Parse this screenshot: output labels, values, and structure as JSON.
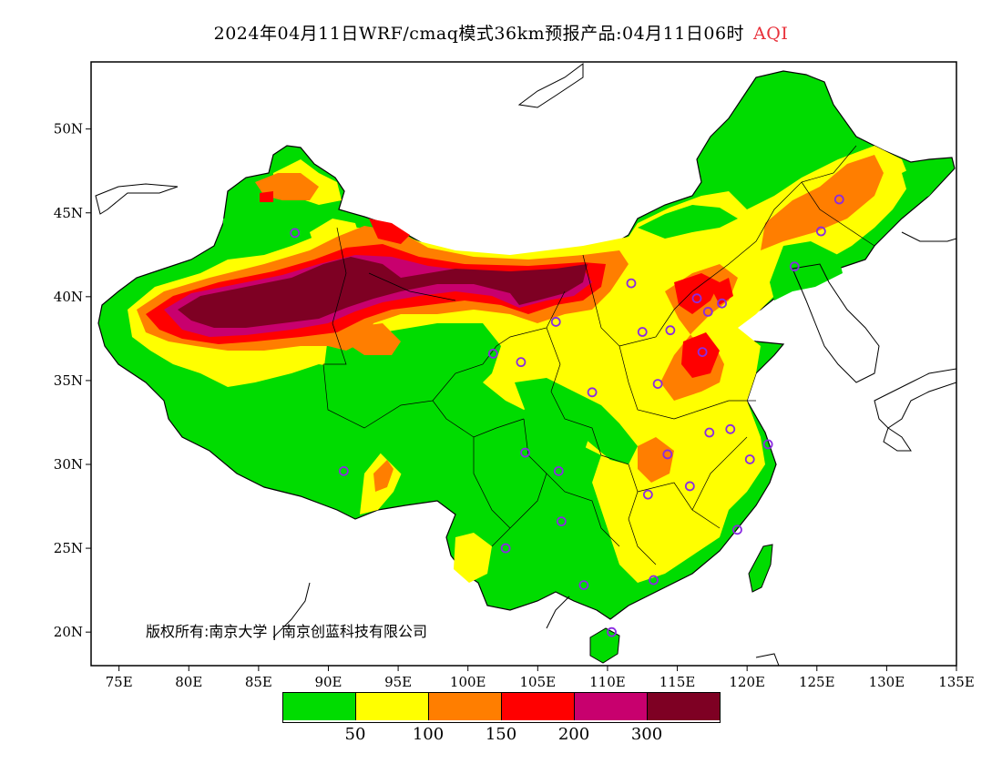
{
  "title": {
    "main": "2024年04月11日WRF/cmaq模式36km预报产品:04月11日06时",
    "variable": "AQI"
  },
  "copyright": "版权所有:南京大学 | 南京创蓝科技有限公司",
  "axes": {
    "x_ticks": [
      "75E",
      "80E",
      "85E",
      "90E",
      "95E",
      "100E",
      "105E",
      "110E",
      "115E",
      "120E",
      "125E",
      "130E",
      "135E"
    ],
    "x_values": [
      75,
      80,
      85,
      90,
      95,
      100,
      105,
      110,
      115,
      120,
      125,
      130,
      135
    ],
    "y_ticks": [
      "20N",
      "25N",
      "30N",
      "35N",
      "40N",
      "45N",
      "50N"
    ],
    "y_values": [
      20,
      25,
      30,
      35,
      40,
      45,
      50
    ],
    "lon_range": [
      73,
      135
    ],
    "lat_range": [
      18,
      54
    ]
  },
  "legend": {
    "colors": [
      "#00dc00",
      "#ffff00",
      "#ff7e00",
      "#ff0000",
      "#c8006e",
      "#7e0023"
    ],
    "labels": [
      "50",
      "100",
      "150",
      "200",
      "300"
    ]
  },
  "stations": [
    [
      87.6,
      43.8
    ],
    [
      91.1,
      29.6
    ],
    [
      101.8,
      36.6
    ],
    [
      103.8,
      36.1
    ],
    [
      106.3,
      38.5
    ],
    [
      111.7,
      40.8
    ],
    [
      112.5,
      37.9
    ],
    [
      114.5,
      38.0
    ],
    [
      116.4,
      39.9
    ],
    [
      117.2,
      39.1
    ],
    [
      118.2,
      39.6
    ],
    [
      116.8,
      36.7
    ],
    [
      113.6,
      34.8
    ],
    [
      108.9,
      34.3
    ],
    [
      104.1,
      30.7
    ],
    [
      106.5,
      29.6
    ],
    [
      106.7,
      26.6
    ],
    [
      102.7,
      25.0
    ],
    [
      108.3,
      22.8
    ],
    [
      113.3,
      23.1
    ],
    [
      110.3,
      20.0
    ],
    [
      119.3,
      26.1
    ],
    [
      115.9,
      28.7
    ],
    [
      112.9,
      28.2
    ],
    [
      114.3,
      30.6
    ],
    [
      117.3,
      31.9
    ],
    [
      118.8,
      32.1
    ],
    [
      120.2,
      30.3
    ],
    [
      121.5,
      31.2
    ],
    [
      123.4,
      41.8
    ],
    [
      125.3,
      43.9
    ],
    [
      126.6,
      45.8
    ]
  ]
}
